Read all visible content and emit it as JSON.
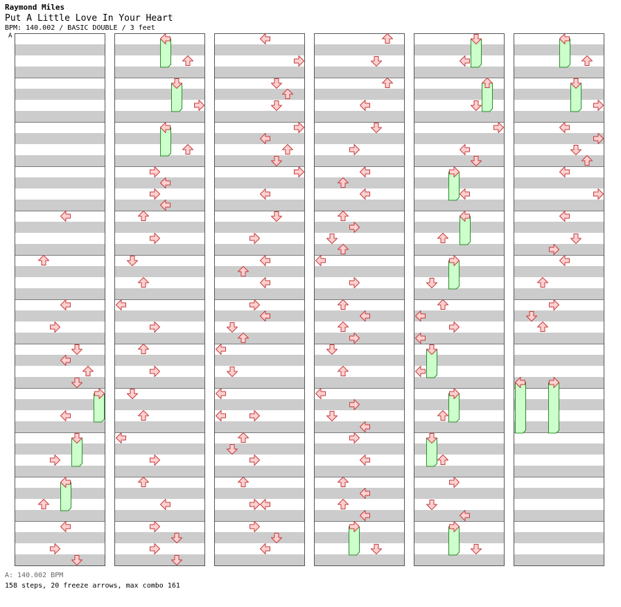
{
  "header": {
    "artist": "Raymond Miles",
    "title": "Put A Little Love In Your Heart",
    "info": "BPM: 140.002 / BASIC DOUBLE / 3 feet",
    "bpm_marker": "A"
  },
  "footer": {
    "bpm": "A: 140.002 BPM",
    "stats": "158 steps, 20 freeze arrows, max combo 161"
  },
  "colors": {
    "stripe": "#cccccc",
    "arrow_fill": "#ffd0d0",
    "arrow_stroke": "#c23a3a",
    "hold_fill": "#ccffcc",
    "hold_stroke": "#2a8a2a",
    "bpm_line": "#6aa0d8"
  },
  "layout_note": "8 lanes per measure, 4 beats per measure, 12 measures per column, 6 columns; lanes L1 D1 U1 R1 L2 D2 U2 R2; beat values are in beats within the measure",
  "columns": [
    {
      "measures": [
        {
          "notes": [],
          "holds": []
        },
        {
          "notes": [],
          "holds": []
        },
        {
          "notes": [],
          "holds": []
        },
        {
          "notes": [],
          "holds": []
        },
        {
          "notes": [
            {
              "b": 0,
              "l": 4
            }
          ],
          "holds": []
        },
        {
          "notes": [
            {
              "b": 0,
              "l": 2
            }
          ],
          "holds": []
        },
        {
          "notes": [
            {
              "b": 0,
              "l": 4
            },
            {
              "b": 2,
              "l": 3
            }
          ],
          "holds": []
        },
        {
          "notes": [
            {
              "b": 0,
              "l": 5
            },
            {
              "b": 1,
              "l": 4
            },
            {
              "b": 2,
              "l": 6
            },
            {
              "b": 3,
              "l": 5
            }
          ],
          "holds": []
        },
        {
          "notes": [
            {
              "b": 2,
              "l": 4
            }
          ],
          "holds": [
            {
              "b": 0,
              "l": 7,
              "len": 2.5
            }
          ]
        },
        {
          "notes": [
            {
              "b": 2,
              "l": 3
            }
          ],
          "holds": [
            {
              "b": 0,
              "l": 5,
              "len": 2.5
            }
          ]
        },
        {
          "notes": [
            {
              "b": 2,
              "l": 2
            }
          ],
          "holds": [
            {
              "b": 0,
              "l": 4,
              "len": 2.5
            }
          ]
        },
        {
          "notes": [
            {
              "b": 0,
              "l": 4
            },
            {
              "b": 2,
              "l": 3
            },
            {
              "b": 3,
              "l": 5
            }
          ],
          "holds": []
        }
      ]
    },
    {
      "measures": [
        {
          "notes": [
            {
              "b": 2,
              "l": 6
            }
          ],
          "holds": [
            {
              "b": 0,
              "l": 4,
              "len": 2.5
            }
          ]
        },
        {
          "notes": [
            {
              "b": 2,
              "l": 7
            }
          ],
          "holds": [
            {
              "b": 0,
              "l": 5,
              "len": 2.5
            }
          ]
        },
        {
          "notes": [
            {
              "b": 2,
              "l": 6
            }
          ],
          "holds": [
            {
              "b": 0,
              "l": 4,
              "len": 2.5
            }
          ]
        },
        {
          "notes": [
            {
              "b": 0,
              "l": 3
            },
            {
              "b": 1,
              "l": 4
            },
            {
              "b": 2,
              "l": 3
            },
            {
              "b": 3,
              "l": 4
            }
          ],
          "holds": []
        },
        {
          "notes": [
            {
              "b": 0,
              "l": 2
            },
            {
              "b": 2,
              "l": 3
            }
          ],
          "holds": []
        },
        {
          "notes": [
            {
              "b": 0,
              "l": 1
            },
            {
              "b": 2,
              "l": 2
            }
          ],
          "holds": []
        },
        {
          "notes": [
            {
              "b": 0,
              "l": 0
            },
            {
              "b": 2,
              "l": 3
            }
          ],
          "holds": []
        },
        {
          "notes": [
            {
              "b": 0,
              "l": 2
            },
            {
              "b": 2,
              "l": 3
            }
          ],
          "holds": []
        },
        {
          "notes": [
            {
              "b": 0,
              "l": 1
            },
            {
              "b": 2,
              "l": 2
            }
          ],
          "holds": []
        },
        {
          "notes": [
            {
              "b": 0,
              "l": 0
            },
            {
              "b": 2,
              "l": 3
            }
          ],
          "holds": []
        },
        {
          "notes": [
            {
              "b": 0,
              "l": 2
            },
            {
              "b": 2,
              "l": 4
            }
          ],
          "holds": []
        },
        {
          "notes": [
            {
              "b": 0,
              "l": 3
            },
            {
              "b": 1,
              "l": 5
            },
            {
              "b": 2,
              "l": 3
            },
            {
              "b": 3,
              "l": 5
            }
          ],
          "holds": []
        }
      ]
    },
    {
      "measures": [
        {
          "notes": [
            {
              "b": 0,
              "l": 4
            },
            {
              "b": 2,
              "l": 7
            }
          ],
          "holds": []
        },
        {
          "notes": [
            {
              "b": 0,
              "l": 5
            },
            {
              "b": 1,
              "l": 6
            },
            {
              "b": 2,
              "l": 5
            }
          ],
          "holds": []
        },
        {
          "notes": [
            {
              "b": 0,
              "l": 7
            },
            {
              "b": 1,
              "l": 4
            },
            {
              "b": 2,
              "l": 6
            },
            {
              "b": 3,
              "l": 5
            }
          ],
          "holds": []
        },
        {
          "notes": [
            {
              "b": 0,
              "l": 7
            },
            {
              "b": 2,
              "l": 4
            }
          ],
          "holds": []
        },
        {
          "notes": [
            {
              "b": 0,
              "l": 5
            },
            {
              "b": 2,
              "l": 3
            }
          ],
          "holds": []
        },
        {
          "notes": [
            {
              "b": 0,
              "l": 4
            },
            {
              "b": 1,
              "l": 2
            },
            {
              "b": 2,
              "l": 4
            }
          ],
          "holds": []
        },
        {
          "notes": [
            {
              "b": 0,
              "l": 3
            },
            {
              "b": 1,
              "l": 4
            },
            {
              "b": 2,
              "l": 1
            },
            {
              "b": 3,
              "l": 2
            }
          ],
          "holds": []
        },
        {
          "notes": [
            {
              "b": 0,
              "l": 0
            },
            {
              "b": 2,
              "l": 1
            }
          ],
          "holds": []
        },
        {
          "notes": [
            {
              "b": 0,
              "l": 0
            },
            {
              "b": 2,
              "l": 0
            },
            {
              "b": 2,
              "l": 3
            }
          ],
          "holds": []
        },
        {
          "notes": [
            {
              "b": 0,
              "l": 2
            },
            {
              "b": 1,
              "l": 1
            },
            {
              "b": 2,
              "l": 3
            }
          ],
          "holds": []
        },
        {
          "notes": [
            {
              "b": 0,
              "l": 2
            },
            {
              "b": 2,
              "l": 3
            },
            {
              "b": 2,
              "l": 4
            }
          ],
          "holds": []
        },
        {
          "notes": [
            {
              "b": 0,
              "l": 3
            },
            {
              "b": 1,
              "l": 5
            },
            {
              "b": 2,
              "l": 4
            }
          ],
          "holds": []
        }
      ]
    },
    {
      "measures": [
        {
          "notes": [
            {
              "b": 0,
              "l": 6
            },
            {
              "b": 2,
              "l": 5
            }
          ],
          "holds": []
        },
        {
          "notes": [
            {
              "b": 0,
              "l": 6
            },
            {
              "b": 2,
              "l": 4
            }
          ],
          "holds": []
        },
        {
          "notes": [
            {
              "b": 0,
              "l": 5
            },
            {
              "b": 2,
              "l": 3
            }
          ],
          "holds": []
        },
        {
          "notes": [
            {
              "b": 0,
              "l": 4
            },
            {
              "b": 1,
              "l": 2
            },
            {
              "b": 2,
              "l": 4
            }
          ],
          "holds": []
        },
        {
          "notes": [
            {
              "b": 0,
              "l": 2
            },
            {
              "b": 1,
              "l": 3
            },
            {
              "b": 2,
              "l": 1
            },
            {
              "b": 3,
              "l": 2
            }
          ],
          "holds": []
        },
        {
          "notes": [
            {
              "b": 0,
              "l": 0
            },
            {
              "b": 2,
              "l": 3
            }
          ],
          "holds": []
        },
        {
          "notes": [
            {
              "b": 0,
              "l": 2
            },
            {
              "b": 1,
              "l": 4
            },
            {
              "b": 2,
              "l": 2
            },
            {
              "b": 3,
              "l": 3
            }
          ],
          "holds": []
        },
        {
          "notes": [
            {
              "b": 0,
              "l": 1
            },
            {
              "b": 2,
              "l": 2
            }
          ],
          "holds": []
        },
        {
          "notes": [
            {
              "b": 0,
              "l": 0
            },
            {
              "b": 1,
              "l": 3
            },
            {
              "b": 2,
              "l": 1
            },
            {
              "b": 3,
              "l": 4
            }
          ],
          "holds": []
        },
        {
          "notes": [
            {
              "b": 0,
              "l": 3
            },
            {
              "b": 2,
              "l": 4
            }
          ],
          "holds": []
        },
        {
          "notes": [
            {
              "b": 0,
              "l": 2
            },
            {
              "b": 1,
              "l": 4
            },
            {
              "b": 2,
              "l": 2
            },
            {
              "b": 3,
              "l": 4
            }
          ],
          "holds": []
        },
        {
          "notes": [
            {
              "b": 2,
              "l": 5
            }
          ],
          "holds": [
            {
              "b": 0,
              "l": 3,
              "len": 2.5
            }
          ]
        }
      ]
    },
    {
      "measures": [
        {
          "notes": [
            {
              "b": 2,
              "l": 4
            }
          ],
          "holds": [
            {
              "b": 0,
              "l": 5,
              "len": 2.5
            }
          ]
        },
        {
          "notes": [
            {
              "b": 2,
              "l": 5
            }
          ],
          "holds": [
            {
              "b": 0,
              "l": 6,
              "len": 2.5
            }
          ]
        },
        {
          "notes": [
            {
              "b": 0,
              "l": 7
            },
            {
              "b": 2,
              "l": 4
            },
            {
              "b": 3,
              "l": 5
            }
          ],
          "holds": []
        },
        {
          "notes": [
            {
              "b": 2,
              "l": 4
            }
          ],
          "holds": [
            {
              "b": 0,
              "l": 3,
              "len": 2.5
            }
          ]
        },
        {
          "notes": [
            {
              "b": 2,
              "l": 2
            }
          ],
          "holds": [
            {
              "b": 0,
              "l": 4,
              "len": 2.5
            }
          ]
        },
        {
          "notes": [
            {
              "b": 2,
              "l": 1
            }
          ],
          "holds": [
            {
              "b": 0,
              "l": 3,
              "len": 2.5
            }
          ]
        },
        {
          "notes": [
            {
              "b": 0,
              "l": 2
            },
            {
              "b": 1,
              "l": 0
            },
            {
              "b": 2,
              "l": 3
            },
            {
              "b": 3,
              "l": 0
            }
          ],
          "holds": []
        },
        {
          "notes": [
            {
              "b": 2,
              "l": 0
            }
          ],
          "holds": [
            {
              "b": 0,
              "l": 1,
              "len": 2.5
            }
          ]
        },
        {
          "notes": [
            {
              "b": 2,
              "l": 2
            }
          ],
          "holds": [
            {
              "b": 0,
              "l": 3,
              "len": 2.5
            }
          ]
        },
        {
          "notes": [
            {
              "b": 2,
              "l": 2
            }
          ],
          "holds": [
            {
              "b": 0,
              "l": 1,
              "len": 2.5
            }
          ]
        },
        {
          "notes": [
            {
              "b": 0,
              "l": 3
            },
            {
              "b": 2,
              "l": 1
            },
            {
              "b": 3,
              "l": 4
            }
          ],
          "holds": []
        },
        {
          "notes": [
            {
              "b": 2,
              "l": 5
            }
          ],
          "holds": [
            {
              "b": 0,
              "l": 3,
              "len": 2.5
            }
          ]
        }
      ]
    },
    {
      "measures": [
        {
          "notes": [
            {
              "b": 2,
              "l": 6
            }
          ],
          "holds": [
            {
              "b": 0,
              "l": 4,
              "len": 2.5
            }
          ]
        },
        {
          "notes": [
            {
              "b": 2,
              "l": 7
            }
          ],
          "holds": [
            {
              "b": 0,
              "l": 5,
              "len": 2.5
            }
          ]
        },
        {
          "notes": [
            {
              "b": 0,
              "l": 4
            },
            {
              "b": 1,
              "l": 7
            },
            {
              "b": 2,
              "l": 5
            },
            {
              "b": 3,
              "l": 6
            }
          ],
          "holds": []
        },
        {
          "notes": [
            {
              "b": 0,
              "l": 4
            },
            {
              "b": 2,
              "l": 7
            }
          ],
          "holds": []
        },
        {
          "notes": [
            {
              "b": 0,
              "l": 4
            },
            {
              "b": 2,
              "l": 5
            },
            {
              "b": 3,
              "l": 3
            }
          ],
          "holds": []
        },
        {
          "notes": [
            {
              "b": 0,
              "l": 4
            },
            {
              "b": 2,
              "l": 2
            }
          ],
          "holds": []
        },
        {
          "notes": [
            {
              "b": 0,
              "l": 3
            },
            {
              "b": 1,
              "l": 1
            },
            {
              "b": 2,
              "l": 2
            }
          ],
          "holds": []
        },
        {
          "notes": [
            {
              "b": 3,
              "l": 0
            }
          ],
          "holds": []
        },
        {
          "notes": [],
          "holds": [
            {
              "b": -1,
              "l": 0,
              "len": 4.5
            },
            {
              "b": -1,
              "l": 3,
              "len": 4.5
            }
          ]
        },
        {
          "notes": [],
          "holds": []
        },
        {
          "notes": [],
          "holds": []
        },
        {
          "notes": [],
          "holds": []
        }
      ]
    }
  ]
}
